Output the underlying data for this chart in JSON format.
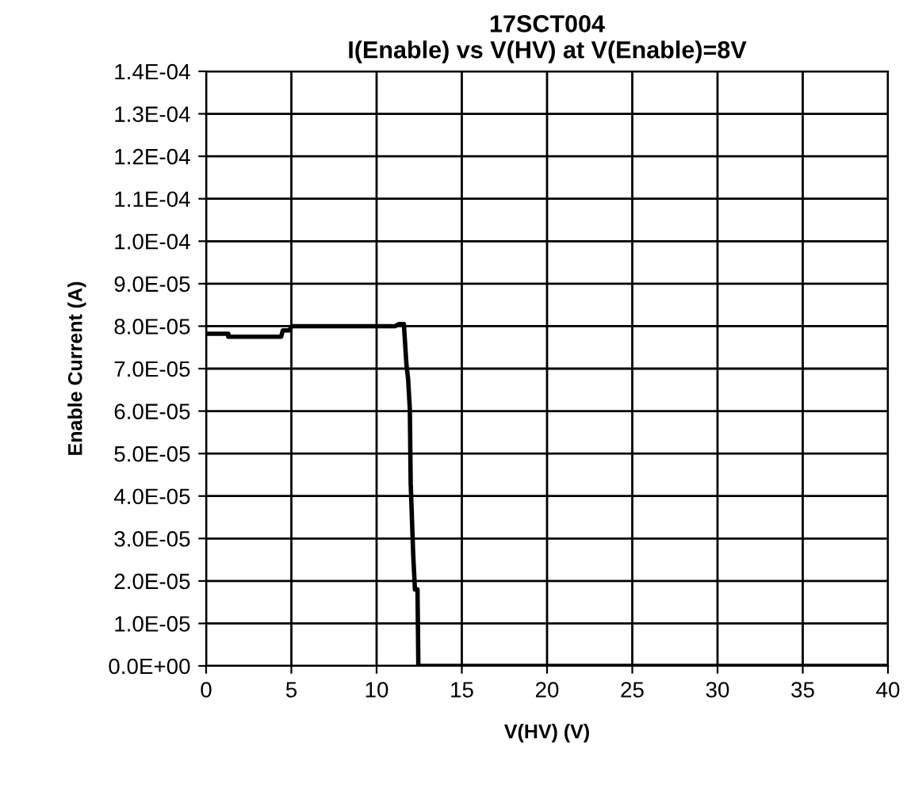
{
  "chart_data": {
    "type": "line",
    "title": "17SCT004\nI(Enable) vs V(HV) at V(Enable)=8V",
    "xlabel": "V(HV) (V)",
    "ylabel": "Enable Current (A)",
    "series": [
      {
        "color": "#000000",
        "x": [
          0,
          1.3,
          1.3,
          4.4,
          4.5,
          4.9,
          5.0,
          11.1,
          11.3,
          11.6,
          11.75,
          11.85,
          11.95,
          12.0,
          12.15,
          12.25,
          12.4,
          12.45,
          13,
          40
        ],
        "values": [
          7.82e-05,
          7.82e-05,
          7.75e-05,
          7.75e-05,
          7.9e-05,
          7.9e-05,
          8e-05,
          8e-05,
          8.05e-05,
          8.05e-05,
          7.1e-05,
          6.75e-05,
          6.05e-05,
          4.3e-05,
          2.6e-05,
          1.8e-05,
          1.8e-05,
          0,
          0,
          0
        ]
      }
    ],
    "xlim": [
      0,
      40
    ],
    "xticks": [
      0,
      5,
      10,
      15,
      20,
      25,
      30,
      35,
      40
    ],
    "ylim": [
      0,
      0.00014
    ],
    "yticks": [
      {
        "value": 0,
        "label": "0.0E+00"
      },
      {
        "value": 1e-05,
        "label": "1.0E-05"
      },
      {
        "value": 2e-05,
        "label": "2.0E-05"
      },
      {
        "value": 3e-05,
        "label": "3.0E-05"
      },
      {
        "value": 4e-05,
        "label": "4.0E-05"
      },
      {
        "value": 5e-05,
        "label": "5.0E-05"
      },
      {
        "value": 6e-05,
        "label": "6.0E-05"
      },
      {
        "value": 7e-05,
        "label": "7.0E-05"
      },
      {
        "value": 8e-05,
        "label": "8.0E-05"
      },
      {
        "value": 9e-05,
        "label": "9.0E-05"
      },
      {
        "value": 0.0001,
        "label": "1.0E-04"
      },
      {
        "value": 0.00011,
        "label": "1.1E-04"
      },
      {
        "value": 0.00012,
        "label": "1.2E-04"
      },
      {
        "value": 0.00013,
        "label": "1.3E-04"
      },
      {
        "value": 0.00014,
        "label": "1.4E-04"
      }
    ],
    "grid": true,
    "marker": "none",
    "line_style": "solid"
  }
}
